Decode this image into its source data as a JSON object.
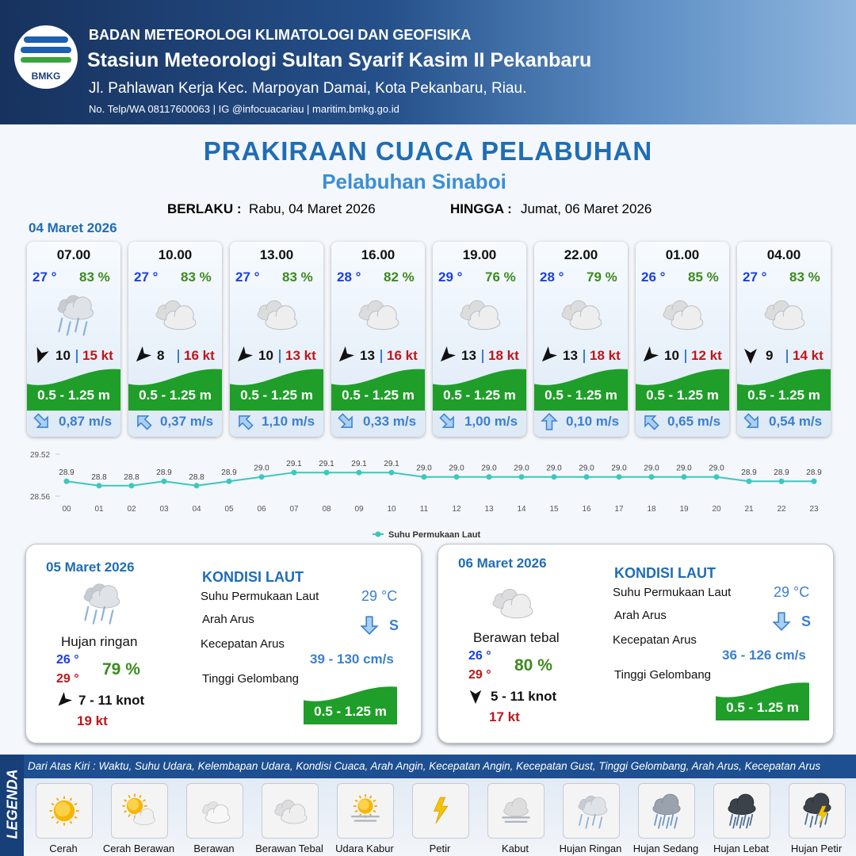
{
  "header": {
    "logo": "BMKG",
    "org": "BADAN METEOROLOGI KLIMATOLOGI DAN GEOFISIKA",
    "station": "Stasiun Meteorologi Sultan Syarif Kasim II Pekanbaru",
    "address": "Jl. Pahlawan Kerja Kec. Marpoyan Damai, Kota Pekanbaru, Riau.",
    "contact": "No. Telp/WA 08117600063 | IG @infocuacariau | maritim.bmkg.go.id"
  },
  "title": "PRAKIRAAN CUACA PELABUHAN",
  "subtitle": "Pelabuhan Sinaboi",
  "validity": {
    "from_label": "BERLAKU :",
    "from": "Rabu, 04 Maret 2026",
    "to_label": "HINGGA :",
    "to": "Jumat, 06 Maret 2026"
  },
  "today": {
    "date": "04 Maret 2026",
    "slots": [
      {
        "time": "07.00",
        "temp": "27 °",
        "humidity": "83 %",
        "condition": "Hujan Ringan",
        "wind_arrow_deg": 200,
        "wind": "10",
        "gust": "15 kt",
        "wave": "0.5 - 1.25 m",
        "current_arrow_deg": 135,
        "current": "0,87 m/s"
      },
      {
        "time": "10.00",
        "temp": "27 °",
        "humidity": "83 %",
        "condition": "Berawan Tebal",
        "wind_arrow_deg": 225,
        "wind": "8",
        "gust": "16 kt",
        "wave": "0.5 - 1.25 m",
        "current_arrow_deg": 315,
        "current": "0,37 m/s"
      },
      {
        "time": "13.00",
        "temp": "27 °",
        "humidity": "83 %",
        "condition": "Berawan Tebal",
        "wind_arrow_deg": 225,
        "wind": "10",
        "gust": "13 kt",
        "wave": "0.5 - 1.25 m",
        "current_arrow_deg": 315,
        "current": "1,10 m/s"
      },
      {
        "time": "16.00",
        "temp": "28 °",
        "humidity": "82 %",
        "condition": "Berawan Tebal",
        "wind_arrow_deg": 225,
        "wind": "13",
        "gust": "16 kt",
        "wave": "0.5 - 1.25 m",
        "current_arrow_deg": 135,
        "current": "0,33 m/s"
      },
      {
        "time": "19.00",
        "temp": "29 °",
        "humidity": "76 %",
        "condition": "Berawan Tebal",
        "wind_arrow_deg": 225,
        "wind": "13",
        "gust": "18 kt",
        "wave": "0.5 - 1.25 m",
        "current_arrow_deg": 135,
        "current": "1,00 m/s"
      },
      {
        "time": "22.00",
        "temp": "28 °",
        "humidity": "79 %",
        "condition": "Berawan Tebal",
        "wind_arrow_deg": 225,
        "wind": "13",
        "gust": "18 kt",
        "wave": "0.5 - 1.25 m",
        "current_arrow_deg": 0,
        "current": "0,10 m/s"
      },
      {
        "time": "01.00",
        "temp": "26 °",
        "humidity": "85 %",
        "condition": "Berawan Tebal",
        "wind_arrow_deg": 225,
        "wind": "10",
        "gust": "12 kt",
        "wave": "0.5 - 1.25 m",
        "current_arrow_deg": 315,
        "current": "0,65 m/s"
      },
      {
        "time": "04.00",
        "temp": "27 °",
        "humidity": "83 %",
        "condition": "Berawan Tebal",
        "wind_arrow_deg": 180,
        "wind": "9",
        "gust": "14 kt",
        "wave": "0.5 - 1.25 m",
        "current_arrow_deg": 135,
        "current": "0,54 m/s"
      }
    ]
  },
  "chart_data": {
    "type": "line",
    "categories": [
      "00",
      "01",
      "02",
      "03",
      "04",
      "05",
      "06",
      "07",
      "08",
      "09",
      "10",
      "11",
      "12",
      "13",
      "14",
      "15",
      "16",
      "17",
      "18",
      "19",
      "20",
      "21",
      "22",
      "23"
    ],
    "series": [
      {
        "name": "Suhu Permukaan Laut",
        "color": "#3cc7c0",
        "values": [
          28.9,
          28.8,
          28.8,
          28.9,
          28.8,
          28.9,
          29.0,
          29.1,
          29.1,
          29.1,
          29.1,
          29.0,
          29.0,
          29.0,
          29.0,
          29.0,
          29.0,
          29.0,
          29.0,
          29.0,
          29.0,
          28.9,
          28.9,
          28.9
        ],
        "value_labels": [
          "28.9",
          "28.8",
          "28.8",
          "28.9",
          "28.8",
          "28.9",
          "29.0",
          "29.1",
          "29.1",
          "29.1",
          "29.1",
          "29.0",
          "29.0",
          "29.0",
          "29.0",
          "29.0",
          "29.0",
          "29.0",
          "29.0",
          "29.0",
          "29.0",
          "28.9",
          "28.9",
          "28.9"
        ]
      }
    ],
    "ylim": [
      28.56,
      29.52
    ],
    "yticks": [
      28.56,
      29.52
    ],
    "legend": "bottom"
  },
  "days": [
    {
      "date": "05 Maret 2026",
      "condition": "Hujan ringan",
      "temp_min": "26 °",
      "temp_max": "29 °",
      "humidity": "79 %",
      "wind_arrow_deg": 225,
      "wind": "7  - 11 knot",
      "gust": "19 kt",
      "sea": {
        "title": "KONDISI LAUT",
        "sst_label": "Suhu Permukaan Laut",
        "sst": "29 °C",
        "current_dir_label": "Arah Arus",
        "current_arrow_deg": 180,
        "current_dir": "S",
        "current_speed_label": "Kecepatan Arus",
        "current_speed": "39  - 130 cm/s",
        "wave_label": "Tinggi Gelombang",
        "wave": "0.5 - 1.25 m"
      }
    },
    {
      "date": "06 Maret 2026",
      "condition": "Berawan tebal",
      "temp_min": "26 °",
      "temp_max": "29 °",
      "humidity": "80 %",
      "wind_arrow_deg": 180,
      "wind": "5 - 11 knot",
      "gust": "17 kt",
      "sea": {
        "title": "KONDISI LAUT",
        "sst_label": "Suhu Permukaan Laut",
        "sst": "29 °C",
        "current_dir_label": "Arah Arus",
        "current_arrow_deg": 180,
        "current_dir": "S",
        "current_speed_label": "Kecepatan Arus",
        "current_speed": "36 - 126 cm/s",
        "wave_label": "Tinggi Gelombang",
        "wave": "0.5 - 1.25 m"
      }
    }
  ],
  "legend": {
    "title": "LEGENDA",
    "description": "Dari Atas Kiri : Waktu, Suhu Udara, Kelembapan Udara, Kondisi Cuaca, Arah Angin, Kecepatan Angin, Kecepatan Gust, Tinggi Gelombang, Arah Arus, Kecepatan Arus",
    "items": [
      "Cerah",
      "Cerah Berawan",
      "Berawan",
      "Berawan Tebal",
      "Udara Kabur",
      "Petir",
      "Kabut",
      "Hujan Ringan",
      "Hujan Sedang",
      "Hujan Lebat",
      "Hujan Petir"
    ]
  }
}
